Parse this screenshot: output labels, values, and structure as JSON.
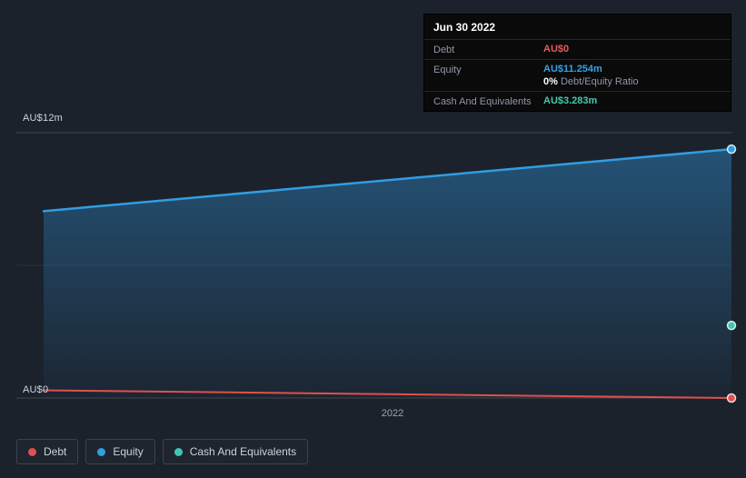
{
  "page": {
    "background": "#1b222c"
  },
  "tooltip": {
    "date": "Jun 30 2022",
    "rows": [
      {
        "label": "Debt",
        "value": "AU$0",
        "color": "#e25c5c"
      },
      {
        "label": "Equity",
        "value": "AU$11.254m",
        "color": "#38a0e4",
        "ratio_bold": "0%",
        "ratio_text": "Debt/Equity Ratio"
      },
      {
        "label": "Cash And Equivalents",
        "value": "AU$3.283m",
        "color": "#43c8b2"
      }
    ]
  },
  "chart_data": {
    "type": "area",
    "x_axis": {
      "tick_labels": [
        "2022"
      ]
    },
    "y_axis": {
      "min": 0,
      "max": 12,
      "top_label": "AU$12m",
      "bottom_label": "AU$0",
      "gridline_values": [
        12,
        6,
        0
      ]
    },
    "series": [
      {
        "name": "Equity",
        "color": "#319de2",
        "area": true,
        "points": [
          {
            "x": 0,
            "y": 8.45
          },
          {
            "x": 1,
            "y": 11.254
          }
        ]
      },
      {
        "name": "Debt",
        "color": "#e0504d",
        "area": false,
        "points": [
          {
            "x": 0,
            "y": 0.35
          },
          {
            "x": 1,
            "y": 0
          }
        ]
      },
      {
        "name": "Cash And Equivalents",
        "color": "#3ec6b3",
        "area": false,
        "points": [
          {
            "x": 1,
            "y": 3.283
          }
        ]
      }
    ]
  },
  "legend": {
    "items": [
      {
        "label": "Debt",
        "color": "#e0504d"
      },
      {
        "label": "Equity",
        "color": "#319de2"
      },
      {
        "label": "Cash And Equivalents",
        "color": "#3ec6b3"
      }
    ]
  }
}
